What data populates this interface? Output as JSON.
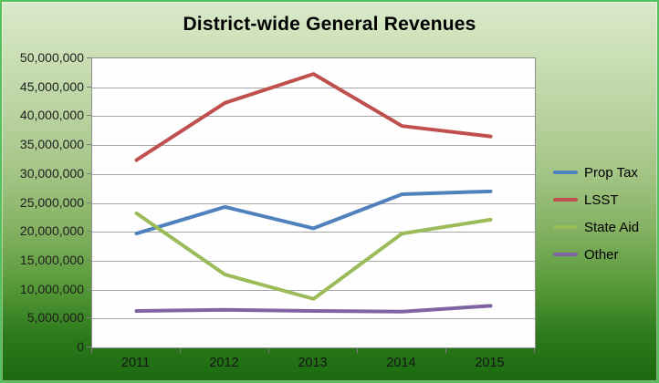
{
  "chart_data": {
    "type": "line",
    "title": "District-wide General Revenues",
    "xlabel": "",
    "ylabel": "",
    "categories": [
      "2011",
      "2012",
      "2013",
      "2014",
      "2015"
    ],
    "series": [
      {
        "name": "Prop Tax",
        "color": "#4F81BD",
        "values": [
          19700000,
          24300000,
          20600000,
          26500000,
          27000000
        ]
      },
      {
        "name": "LSST",
        "color": "#C0504D",
        "values": [
          32400000,
          42300000,
          47300000,
          38300000,
          36500000
        ]
      },
      {
        "name": "State Aid",
        "color": "#9BBB59",
        "values": [
          23200000,
          12600000,
          8400000,
          19700000,
          22100000
        ]
      },
      {
        "name": "Other",
        "color": "#8064A2",
        "values": [
          6300000,
          6500000,
          6300000,
          6200000,
          7200000
        ]
      }
    ],
    "ylim": [
      0,
      50000000
    ],
    "ytick_step": 5000000,
    "yticks": [
      {
        "v": 0,
        "label": "0"
      },
      {
        "v": 5000000,
        "label": "5,000,000"
      },
      {
        "v": 10000000,
        "label": "10,000,000"
      },
      {
        "v": 15000000,
        "label": "15,000,000"
      },
      {
        "v": 20000000,
        "label": "20,000,000"
      },
      {
        "v": 25000000,
        "label": "25,000,000"
      },
      {
        "v": 30000000,
        "label": "30,000,000"
      },
      {
        "v": 35000000,
        "label": "35,000,000"
      },
      {
        "v": 40000000,
        "label": "40,000,000"
      },
      {
        "v": 45000000,
        "label": "45,000,000"
      },
      {
        "v": 50000000,
        "label": "50,000,000"
      }
    ],
    "grid": true,
    "legend_position": "right"
  },
  "colors": {
    "frame_border": "#55c05c",
    "background_top": "#d9e9ca",
    "background_bottom": "#1c6a10",
    "plot_background": "#fefefe",
    "gridline": "#a6a6a6",
    "axis_text": "#1d1d1d",
    "title_text": "#000000"
  }
}
